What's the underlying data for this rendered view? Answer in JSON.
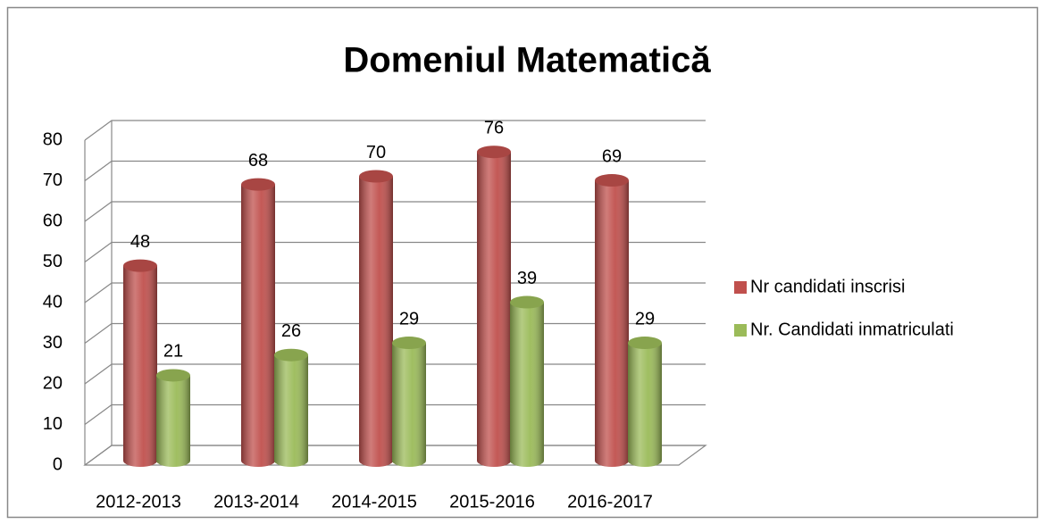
{
  "chart_data": {
    "type": "bar3d",
    "title": "Domeniul Matematică",
    "categories": [
      "2012-2013",
      "2013-2014",
      "2014-2015",
      "2015-2016",
      "2016-2017"
    ],
    "series": [
      {
        "name": "Nr candidati inscrisi",
        "color": "#c0504d",
        "values": [
          48,
          68,
          70,
          76,
          69
        ]
      },
      {
        "name": "Nr. Candidati inmatriculati",
        "color": "#9bbb59",
        "values": [
          21,
          26,
          29,
          39,
          29
        ]
      }
    ],
    "ylim": [
      0,
      80
    ],
    "yticks": [
      0,
      10,
      20,
      30,
      40,
      50,
      60,
      70,
      80
    ],
    "grid": true,
    "legend": "right"
  }
}
